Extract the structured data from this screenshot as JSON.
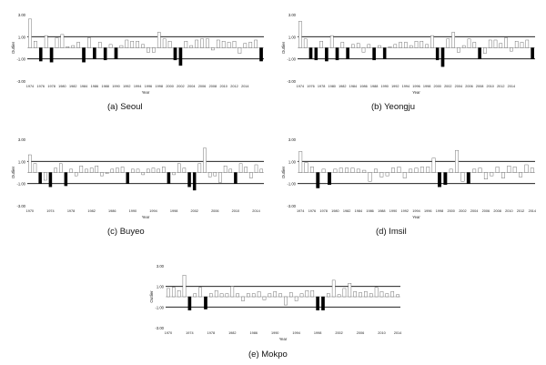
{
  "chart_data": [
    {
      "type": "bar",
      "caption": "(a) Seoul",
      "xlabel": "Year",
      "ylabel": "Outlier",
      "ylim": [
        -3,
        3
      ],
      "yticks": [
        "3.00",
        "1.00",
        "-1.00",
        "-3.00"
      ],
      "threshold_lines": [
        1,
        -1
      ],
      "xticks": [
        1974,
        1976,
        1978,
        1980,
        1982,
        1984,
        1986,
        1988,
        1990,
        1992,
        1994,
        1996,
        1998,
        2000,
        2002,
        2004,
        2006,
        2008,
        2010,
        2012,
        2014
      ],
      "start_year": 1974,
      "values": [
        2.6,
        0.6,
        -1.2,
        1.1,
        -1.3,
        0.9,
        1.2,
        0.1,
        0.2,
        0.5,
        -1.3,
        0.9,
        -1.0,
        0.5,
        -1.1,
        0.3,
        -1.0,
        0.2,
        0.7,
        0.6,
        0.6,
        0.3,
        -0.4,
        -0.4,
        1.4,
        0.8,
        0.6,
        -1.1,
        -1.6,
        0.6,
        0.2,
        0.7,
        0.8,
        0.8,
        -0.2,
        0.7,
        0.6,
        0.5,
        0.6,
        -0.5,
        0.4,
        0.5,
        0.7,
        -1.2
      ]
    },
    {
      "type": "bar",
      "caption": "(b) Yeongju",
      "xlabel": "Year",
      "ylabel": "Outlier",
      "ylim": [
        -3,
        3
      ],
      "yticks": [
        "3.00",
        "1.00",
        "-1.00",
        "-3.00"
      ],
      "threshold_lines": [
        1,
        -1
      ],
      "xticks": [
        1974,
        1976,
        1978,
        1980,
        1982,
        1984,
        1986,
        1988,
        1990,
        1992,
        1994,
        1996,
        1998,
        2000,
        2002,
        2004,
        2006,
        2008,
        2010,
        2012,
        2014
      ],
      "start_year": 1974,
      "values": [
        2.4,
        0.8,
        -1.0,
        -1.1,
        0.6,
        -1.2,
        1.1,
        -1.1,
        0.5,
        -1.0,
        0.3,
        0.4,
        -0.4,
        0.3,
        -1.1,
        0.2,
        -1.0,
        0.1,
        0.3,
        0.5,
        0.5,
        0.2,
        0.6,
        0.6,
        0.3,
        1.1,
        -1.1,
        -1.7,
        0.8,
        1.4,
        -0.4,
        0.2,
        0.8,
        0.5,
        -1.0,
        -0.5,
        0.7,
        0.7,
        0.4,
        0.9,
        -0.3,
        0.6,
        0.5,
        0.7,
        -1.0
      ]
    },
    {
      "type": "bar",
      "caption": "(c) Buyeo",
      "xlabel": "Year",
      "ylabel": "Outlier",
      "ylim": [
        -3,
        3
      ],
      "yticks": [
        "3.00",
        "1.00",
        "-1.00",
        "-3.00"
      ],
      "threshold_lines": [
        1,
        -1
      ],
      "xticks": [
        1970,
        1974,
        1978,
        1982,
        1986,
        1990,
        1994,
        1998,
        2002,
        2006,
        2010,
        2014
      ],
      "start_year": 1970,
      "values": [
        1.6,
        0.8,
        -1.0,
        -0.7,
        -1.3,
        0.4,
        0.8,
        -1.2,
        0.3,
        -0.3,
        0.6,
        0.3,
        0.4,
        0.6,
        -0.3,
        -0.1,
        0.3,
        0.4,
        0.5,
        -1.0,
        0.3,
        0.3,
        -0.2,
        0.3,
        0.4,
        0.3,
        0.5,
        -1.0,
        -0.2,
        0.8,
        0.4,
        -1.3,
        -1.6,
        0.8,
        2.2,
        -0.4,
        -0.3,
        -0.9,
        0.6,
        0.3,
        -1.0,
        0.8,
        0.5,
        -0.5,
        0.7,
        0.3
      ]
    },
    {
      "type": "bar",
      "caption": "(d) Imsil",
      "xlabel": "Year",
      "ylabel": "Outlier",
      "ylim": [
        -3,
        3
      ],
      "yticks": [
        "3.00",
        "1.00",
        "-1.00",
        "-3.00"
      ],
      "threshold_lines": [
        1,
        -1
      ],
      "xticks": [
        1974,
        1976,
        1978,
        1980,
        1982,
        1984,
        1986,
        1988,
        1990,
        1992,
        1994,
        1996,
        1998,
        2000,
        2002,
        2004,
        2006,
        2008,
        2010,
        2012,
        2014
      ],
      "start_year": 1974,
      "values": [
        1.9,
        0.9,
        0.5,
        -1.4,
        0.3,
        -1.1,
        0.3,
        0.4,
        0.4,
        0.4,
        0.3,
        0.2,
        -0.8,
        0.3,
        -0.4,
        -0.3,
        0.4,
        0.5,
        -0.5,
        0.3,
        0.4,
        0.5,
        0.5,
        1.3,
        -1.3,
        -1.1,
        0.3,
        2.0,
        -0.8,
        -1.0,
        0.3,
        0.4,
        -0.6,
        -0.3,
        0.5,
        -0.5,
        0.6,
        0.5,
        -0.4,
        0.7,
        0.4
      ]
    },
    {
      "type": "bar",
      "caption": "(e) Mokpo",
      "xlabel": "Year",
      "ylabel": "Outlier",
      "ylim": [
        -3,
        3
      ],
      "yticks": [
        "3.00",
        "1.00",
        "-1.00",
        "-3.00"
      ],
      "threshold_lines": [
        1,
        -1
      ],
      "xticks": [
        1970,
        1974,
        1978,
        1982,
        1986,
        1990,
        1994,
        1998,
        2002,
        2006,
        2010,
        2014
      ],
      "start_year": 1970,
      "values": [
        0.8,
        0.9,
        0.6,
        2.1,
        -1.3,
        0.3,
        0.9,
        -1.2,
        0.3,
        0.6,
        0.3,
        0.3,
        1.0,
        0.3,
        -0.4,
        0.3,
        0.3,
        0.5,
        -0.3,
        0.3,
        0.5,
        0.3,
        -0.8,
        0.4,
        -0.4,
        0.3,
        0.6,
        0.6,
        -1.3,
        -1.3,
        0.3,
        1.6,
        0.2,
        0.8,
        1.3,
        0.5,
        0.4,
        0.5,
        0.3,
        0.9,
        0.5,
        0.3,
        0.5,
        0.2
      ]
    }
  ]
}
